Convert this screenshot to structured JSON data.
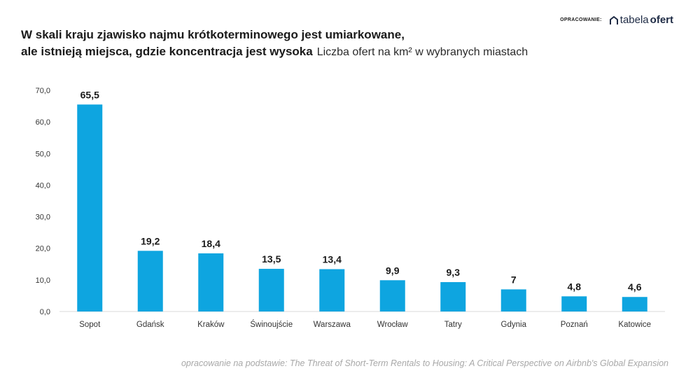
{
  "brand": {
    "label": "OPRACOWANIE:",
    "name_part1": "tabela",
    "name_part2": "ofert",
    "icon": "house-icon"
  },
  "header": {
    "title_line1": "W skali kraju zjawisko najmu krótkoterminowego jest umiarkowane,",
    "title_line2": "ale istnieją miejsca, gdzie koncentracja jest wysoka",
    "subtitle": "Liczba ofert na km² w wybranych miastach"
  },
  "footer": {
    "source": "opracowanie na podstawie: The Threat of Short-Term Rentals to Housing:  A Critical Perspective on Airbnb's Global Expansion"
  },
  "chart_data": {
    "type": "bar",
    "categories": [
      "Sopot",
      "Gdańsk",
      "Kraków",
      "Świnoujście",
      "Warszawa",
      "Wrocław",
      "Tatry",
      "Gdynia",
      "Poznań",
      "Katowice"
    ],
    "values": [
      65.5,
      19.2,
      18.4,
      13.5,
      13.4,
      9.9,
      9.3,
      7,
      4.8,
      4.6
    ],
    "value_labels": [
      "65,5",
      "19,2",
      "18,4",
      "13,5",
      "13,4",
      "9,9",
      "9,3",
      "7",
      "4,8",
      "4,6"
    ],
    "yticks": [
      "0,0",
      "10,0",
      "20,0",
      "30,0",
      "40,0",
      "50,0",
      "60,0",
      "70,0"
    ],
    "ylim": [
      0,
      70
    ],
    "bar_color": "#0ea5e0",
    "grid": false,
    "legend": "none"
  }
}
